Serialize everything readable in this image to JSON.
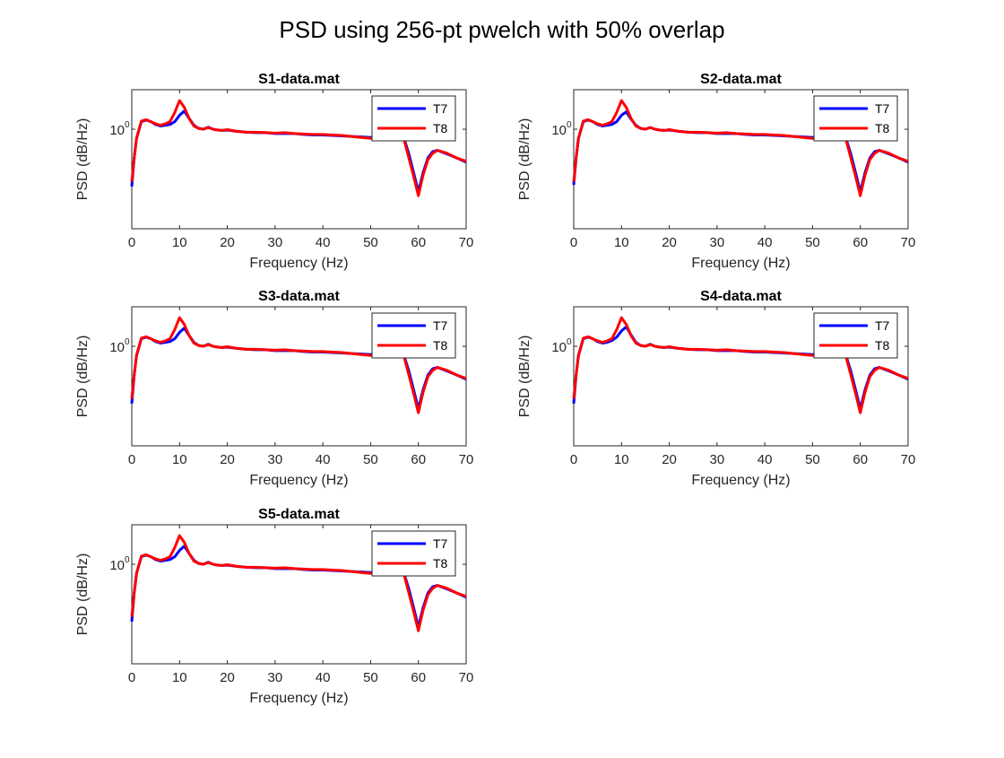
{
  "figure": {
    "title": "PSD using 256-pt pwelch with 50% overlap"
  },
  "chart_data": [
    {
      "type": "line",
      "title": "S1-data.mat",
      "xlabel": "Frequency (Hz)",
      "ylabel": "PSD (dB/Hz)",
      "xlim": [
        0,
        70
      ],
      "xticks": [
        0,
        10,
        20,
        30,
        40,
        50,
        60,
        70
      ],
      "xtick_labels": [
        "0",
        "10",
        "20",
        "30",
        "40",
        "50",
        "60",
        "70"
      ],
      "ytick_labels": [
        "10",
        "0"
      ],
      "y_scale": "log",
      "legend_position": "top-right",
      "x": [
        0,
        0.5,
        1,
        2,
        3,
        4,
        5,
        6,
        7,
        8,
        9,
        10,
        11,
        12,
        13,
        14,
        15,
        16,
        17,
        18,
        19,
        20,
        22,
        24,
        26,
        28,
        30,
        32,
        34,
        36,
        38,
        40,
        42,
        44,
        46,
        48,
        50,
        52,
        54,
        56,
        57,
        58,
        59,
        60,
        61,
        62,
        63,
        64,
        66,
        68,
        70
      ],
      "series": [
        {
          "name": "T7",
          "color": "#0000ff",
          "values": [
            0.25,
            0.5,
            0.8,
            1.2,
            1.25,
            1.2,
            1.12,
            1.08,
            1.1,
            1.12,
            1.2,
            1.4,
            1.55,
            1.3,
            1.1,
            1.02,
            1.0,
            1.05,
            1.0,
            0.98,
            0.97,
            0.98,
            0.95,
            0.93,
            0.92,
            0.92,
            0.9,
            0.9,
            0.9,
            0.88,
            0.87,
            0.87,
            0.86,
            0.85,
            0.84,
            0.83,
            0.82,
            0.85,
            0.88,
            0.9,
            0.8,
            0.55,
            0.35,
            0.22,
            0.35,
            0.5,
            0.58,
            0.6,
            0.55,
            0.5,
            0.45
          ]
        },
        {
          "name": "T8",
          "color": "#ff0000",
          "values": [
            0.28,
            0.5,
            0.8,
            1.22,
            1.26,
            1.2,
            1.14,
            1.1,
            1.14,
            1.2,
            1.5,
            2.0,
            1.7,
            1.3,
            1.08,
            1.02,
            1.0,
            1.04,
            1.0,
            0.98,
            0.97,
            0.99,
            0.95,
            0.93,
            0.93,
            0.92,
            0.91,
            0.92,
            0.9,
            0.89,
            0.88,
            0.88,
            0.87,
            0.86,
            0.84,
            0.82,
            0.8,
            0.83,
            0.86,
            0.88,
            0.78,
            0.5,
            0.32,
            0.2,
            0.33,
            0.48,
            0.56,
            0.6,
            0.56,
            0.5,
            0.46
          ]
        }
      ]
    },
    {
      "type": "line",
      "title": "S2-data.mat",
      "xlabel": "Frequency (Hz)",
      "ylabel": "PSD (dB/Hz)",
      "xlim": [
        0,
        70
      ],
      "xticks": [
        0,
        10,
        20,
        30,
        40,
        50,
        60,
        70
      ],
      "xtick_labels": [
        "0",
        "10",
        "20",
        "30",
        "40",
        "50",
        "60",
        "70"
      ],
      "ytick_labels": [
        "10",
        "0"
      ],
      "y_scale": "log",
      "legend_position": "top-right",
      "x": [
        0,
        0.5,
        1,
        2,
        3,
        4,
        5,
        6,
        7,
        8,
        9,
        10,
        11,
        12,
        13,
        14,
        15,
        16,
        17,
        18,
        19,
        20,
        22,
        24,
        26,
        28,
        30,
        32,
        34,
        36,
        38,
        40,
        42,
        44,
        46,
        48,
        50,
        52,
        54,
        56,
        57,
        58,
        59,
        60,
        61,
        62,
        63,
        64,
        66,
        68,
        70
      ],
      "series": [
        {
          "name": "T7",
          "color": "#0000ff",
          "values": [
            0.26,
            0.5,
            0.8,
            1.2,
            1.25,
            1.2,
            1.12,
            1.08,
            1.1,
            1.12,
            1.2,
            1.4,
            1.52,
            1.28,
            1.1,
            1.02,
            1.0,
            1.04,
            1.0,
            0.98,
            0.97,
            0.98,
            0.95,
            0.93,
            0.92,
            0.92,
            0.9,
            0.9,
            0.9,
            0.88,
            0.87,
            0.87,
            0.86,
            0.85,
            0.84,
            0.83,
            0.82,
            0.85,
            0.88,
            0.9,
            0.8,
            0.55,
            0.35,
            0.22,
            0.35,
            0.5,
            0.58,
            0.6,
            0.55,
            0.5,
            0.45
          ]
        },
        {
          "name": "T8",
          "color": "#ff0000",
          "values": [
            0.28,
            0.5,
            0.8,
            1.22,
            1.26,
            1.2,
            1.14,
            1.1,
            1.14,
            1.2,
            1.5,
            2.0,
            1.7,
            1.3,
            1.08,
            1.02,
            1.0,
            1.04,
            1.0,
            0.98,
            0.97,
            0.99,
            0.95,
            0.93,
            0.93,
            0.92,
            0.91,
            0.92,
            0.9,
            0.89,
            0.88,
            0.88,
            0.87,
            0.86,
            0.84,
            0.82,
            0.8,
            0.83,
            0.86,
            0.88,
            0.78,
            0.5,
            0.32,
            0.2,
            0.33,
            0.48,
            0.56,
            0.6,
            0.56,
            0.5,
            0.46
          ]
        }
      ]
    },
    {
      "type": "line",
      "title": "S3-data.mat",
      "xlabel": "Frequency (Hz)",
      "ylabel": "PSD (dB/Hz)",
      "xlim": [
        0,
        70
      ],
      "xticks": [
        0,
        10,
        20,
        30,
        40,
        50,
        60,
        70
      ],
      "xtick_labels": [
        "0",
        "10",
        "20",
        "30",
        "40",
        "50",
        "60",
        "70"
      ],
      "ytick_labels": [
        "10",
        "0"
      ],
      "y_scale": "log",
      "legend_position": "top-right",
      "x": [
        0,
        0.5,
        1,
        2,
        3,
        4,
        5,
        6,
        7,
        8,
        9,
        10,
        11,
        12,
        13,
        14,
        15,
        16,
        17,
        18,
        19,
        20,
        22,
        24,
        26,
        28,
        30,
        32,
        34,
        36,
        38,
        40,
        42,
        44,
        46,
        48,
        50,
        52,
        54,
        56,
        57,
        58,
        59,
        60,
        61,
        62,
        63,
        64,
        66,
        68,
        70
      ],
      "series": [
        {
          "name": "T7",
          "color": "#0000ff",
          "values": [
            0.25,
            0.5,
            0.8,
            1.2,
            1.25,
            1.2,
            1.12,
            1.08,
            1.1,
            1.12,
            1.2,
            1.4,
            1.55,
            1.3,
            1.1,
            1.02,
            1.0,
            1.05,
            1.0,
            0.98,
            0.97,
            0.98,
            0.95,
            0.93,
            0.92,
            0.92,
            0.9,
            0.9,
            0.9,
            0.88,
            0.87,
            0.87,
            0.86,
            0.85,
            0.84,
            0.83,
            0.82,
            0.85,
            0.88,
            0.9,
            0.8,
            0.55,
            0.35,
            0.22,
            0.35,
            0.5,
            0.58,
            0.6,
            0.55,
            0.5,
            0.45
          ]
        },
        {
          "name": "T8",
          "color": "#ff0000",
          "values": [
            0.28,
            0.5,
            0.8,
            1.22,
            1.26,
            1.2,
            1.14,
            1.1,
            1.14,
            1.2,
            1.5,
            2.0,
            1.7,
            1.3,
            1.08,
            1.02,
            1.0,
            1.04,
            1.0,
            0.98,
            0.97,
            0.99,
            0.95,
            0.93,
            0.93,
            0.92,
            0.91,
            0.92,
            0.9,
            0.89,
            0.88,
            0.88,
            0.87,
            0.86,
            0.84,
            0.82,
            0.8,
            0.83,
            0.86,
            0.88,
            0.78,
            0.5,
            0.32,
            0.2,
            0.33,
            0.48,
            0.56,
            0.6,
            0.56,
            0.5,
            0.46
          ]
        }
      ]
    },
    {
      "type": "line",
      "title": "S4-data.mat",
      "xlabel": "Frequency (Hz)",
      "ylabel": "PSD (dB/Hz)",
      "xlim": [
        0,
        70
      ],
      "xticks": [
        0,
        10,
        20,
        30,
        40,
        50,
        60,
        70
      ],
      "xtick_labels": [
        "0",
        "10",
        "20",
        "30",
        "40",
        "50",
        "60",
        "70"
      ],
      "ytick_labels": [
        "10",
        "0"
      ],
      "y_scale": "log",
      "legend_position": "top-right",
      "x": [
        0,
        0.5,
        1,
        2,
        3,
        4,
        5,
        6,
        7,
        8,
        9,
        10,
        11,
        12,
        13,
        14,
        15,
        16,
        17,
        18,
        19,
        20,
        22,
        24,
        26,
        28,
        30,
        32,
        34,
        36,
        38,
        40,
        42,
        44,
        46,
        48,
        50,
        52,
        54,
        56,
        57,
        58,
        59,
        60,
        61,
        62,
        63,
        64,
        66,
        68,
        70
      ],
      "series": [
        {
          "name": "T7",
          "color": "#0000ff",
          "values": [
            0.25,
            0.5,
            0.8,
            1.2,
            1.25,
            1.2,
            1.12,
            1.08,
            1.1,
            1.15,
            1.25,
            1.45,
            1.6,
            1.32,
            1.1,
            1.02,
            1.0,
            1.05,
            1.0,
            0.98,
            0.97,
            0.98,
            0.95,
            0.93,
            0.92,
            0.92,
            0.9,
            0.9,
            0.9,
            0.88,
            0.87,
            0.87,
            0.86,
            0.85,
            0.84,
            0.83,
            0.82,
            0.85,
            0.88,
            0.9,
            0.8,
            0.55,
            0.35,
            0.22,
            0.35,
            0.5,
            0.58,
            0.6,
            0.55,
            0.5,
            0.45
          ]
        },
        {
          "name": "T8",
          "color": "#ff0000",
          "values": [
            0.28,
            0.5,
            0.8,
            1.22,
            1.26,
            1.2,
            1.14,
            1.1,
            1.14,
            1.2,
            1.5,
            2.0,
            1.7,
            1.3,
            1.08,
            1.02,
            1.0,
            1.04,
            1.0,
            0.98,
            0.97,
            0.99,
            0.95,
            0.93,
            0.93,
            0.92,
            0.91,
            0.92,
            0.9,
            0.89,
            0.88,
            0.88,
            0.87,
            0.86,
            0.84,
            0.82,
            0.8,
            0.83,
            0.86,
            0.88,
            0.78,
            0.5,
            0.32,
            0.2,
            0.33,
            0.48,
            0.56,
            0.6,
            0.56,
            0.5,
            0.46
          ]
        }
      ]
    },
    {
      "type": "line",
      "title": "S5-data.mat",
      "xlabel": "Frequency (Hz)",
      "ylabel": "PSD (dB/Hz)",
      "xlim": [
        0,
        70
      ],
      "xticks": [
        0,
        10,
        20,
        30,
        40,
        50,
        60,
        70
      ],
      "xtick_labels": [
        "0",
        "10",
        "20",
        "30",
        "40",
        "50",
        "60",
        "70"
      ],
      "ytick_labels": [
        "10",
        "0"
      ],
      "y_scale": "log",
      "legend_position": "top-right",
      "x": [
        0,
        0.5,
        1,
        2,
        3,
        4,
        5,
        6,
        7,
        8,
        9,
        10,
        11,
        12,
        13,
        14,
        15,
        16,
        17,
        18,
        19,
        20,
        22,
        24,
        26,
        28,
        30,
        32,
        34,
        36,
        38,
        40,
        42,
        44,
        46,
        48,
        50,
        52,
        54,
        56,
        57,
        58,
        59,
        60,
        61,
        62,
        63,
        64,
        66,
        68,
        70
      ],
      "series": [
        {
          "name": "T7",
          "color": "#0000ff",
          "values": [
            0.25,
            0.5,
            0.8,
            1.2,
            1.25,
            1.2,
            1.12,
            1.08,
            1.1,
            1.12,
            1.2,
            1.4,
            1.55,
            1.3,
            1.1,
            1.02,
            1.0,
            1.05,
            1.0,
            0.98,
            0.97,
            0.98,
            0.95,
            0.93,
            0.92,
            0.92,
            0.9,
            0.9,
            0.9,
            0.88,
            0.87,
            0.87,
            0.86,
            0.85,
            0.84,
            0.83,
            0.82,
            0.85,
            0.88,
            0.9,
            0.8,
            0.55,
            0.35,
            0.22,
            0.35,
            0.5,
            0.58,
            0.6,
            0.55,
            0.5,
            0.45
          ]
        },
        {
          "name": "T8",
          "color": "#ff0000",
          "values": [
            0.28,
            0.5,
            0.8,
            1.22,
            1.26,
            1.2,
            1.14,
            1.1,
            1.14,
            1.2,
            1.5,
            2.0,
            1.7,
            1.3,
            1.08,
            1.02,
            1.0,
            1.04,
            1.0,
            0.98,
            0.97,
            0.99,
            0.95,
            0.93,
            0.93,
            0.92,
            0.91,
            0.92,
            0.9,
            0.89,
            0.88,
            0.88,
            0.87,
            0.86,
            0.84,
            0.82,
            0.8,
            0.83,
            0.86,
            0.88,
            0.78,
            0.5,
            0.32,
            0.2,
            0.33,
            0.48,
            0.56,
            0.6,
            0.56,
            0.5,
            0.46
          ]
        }
      ]
    }
  ]
}
